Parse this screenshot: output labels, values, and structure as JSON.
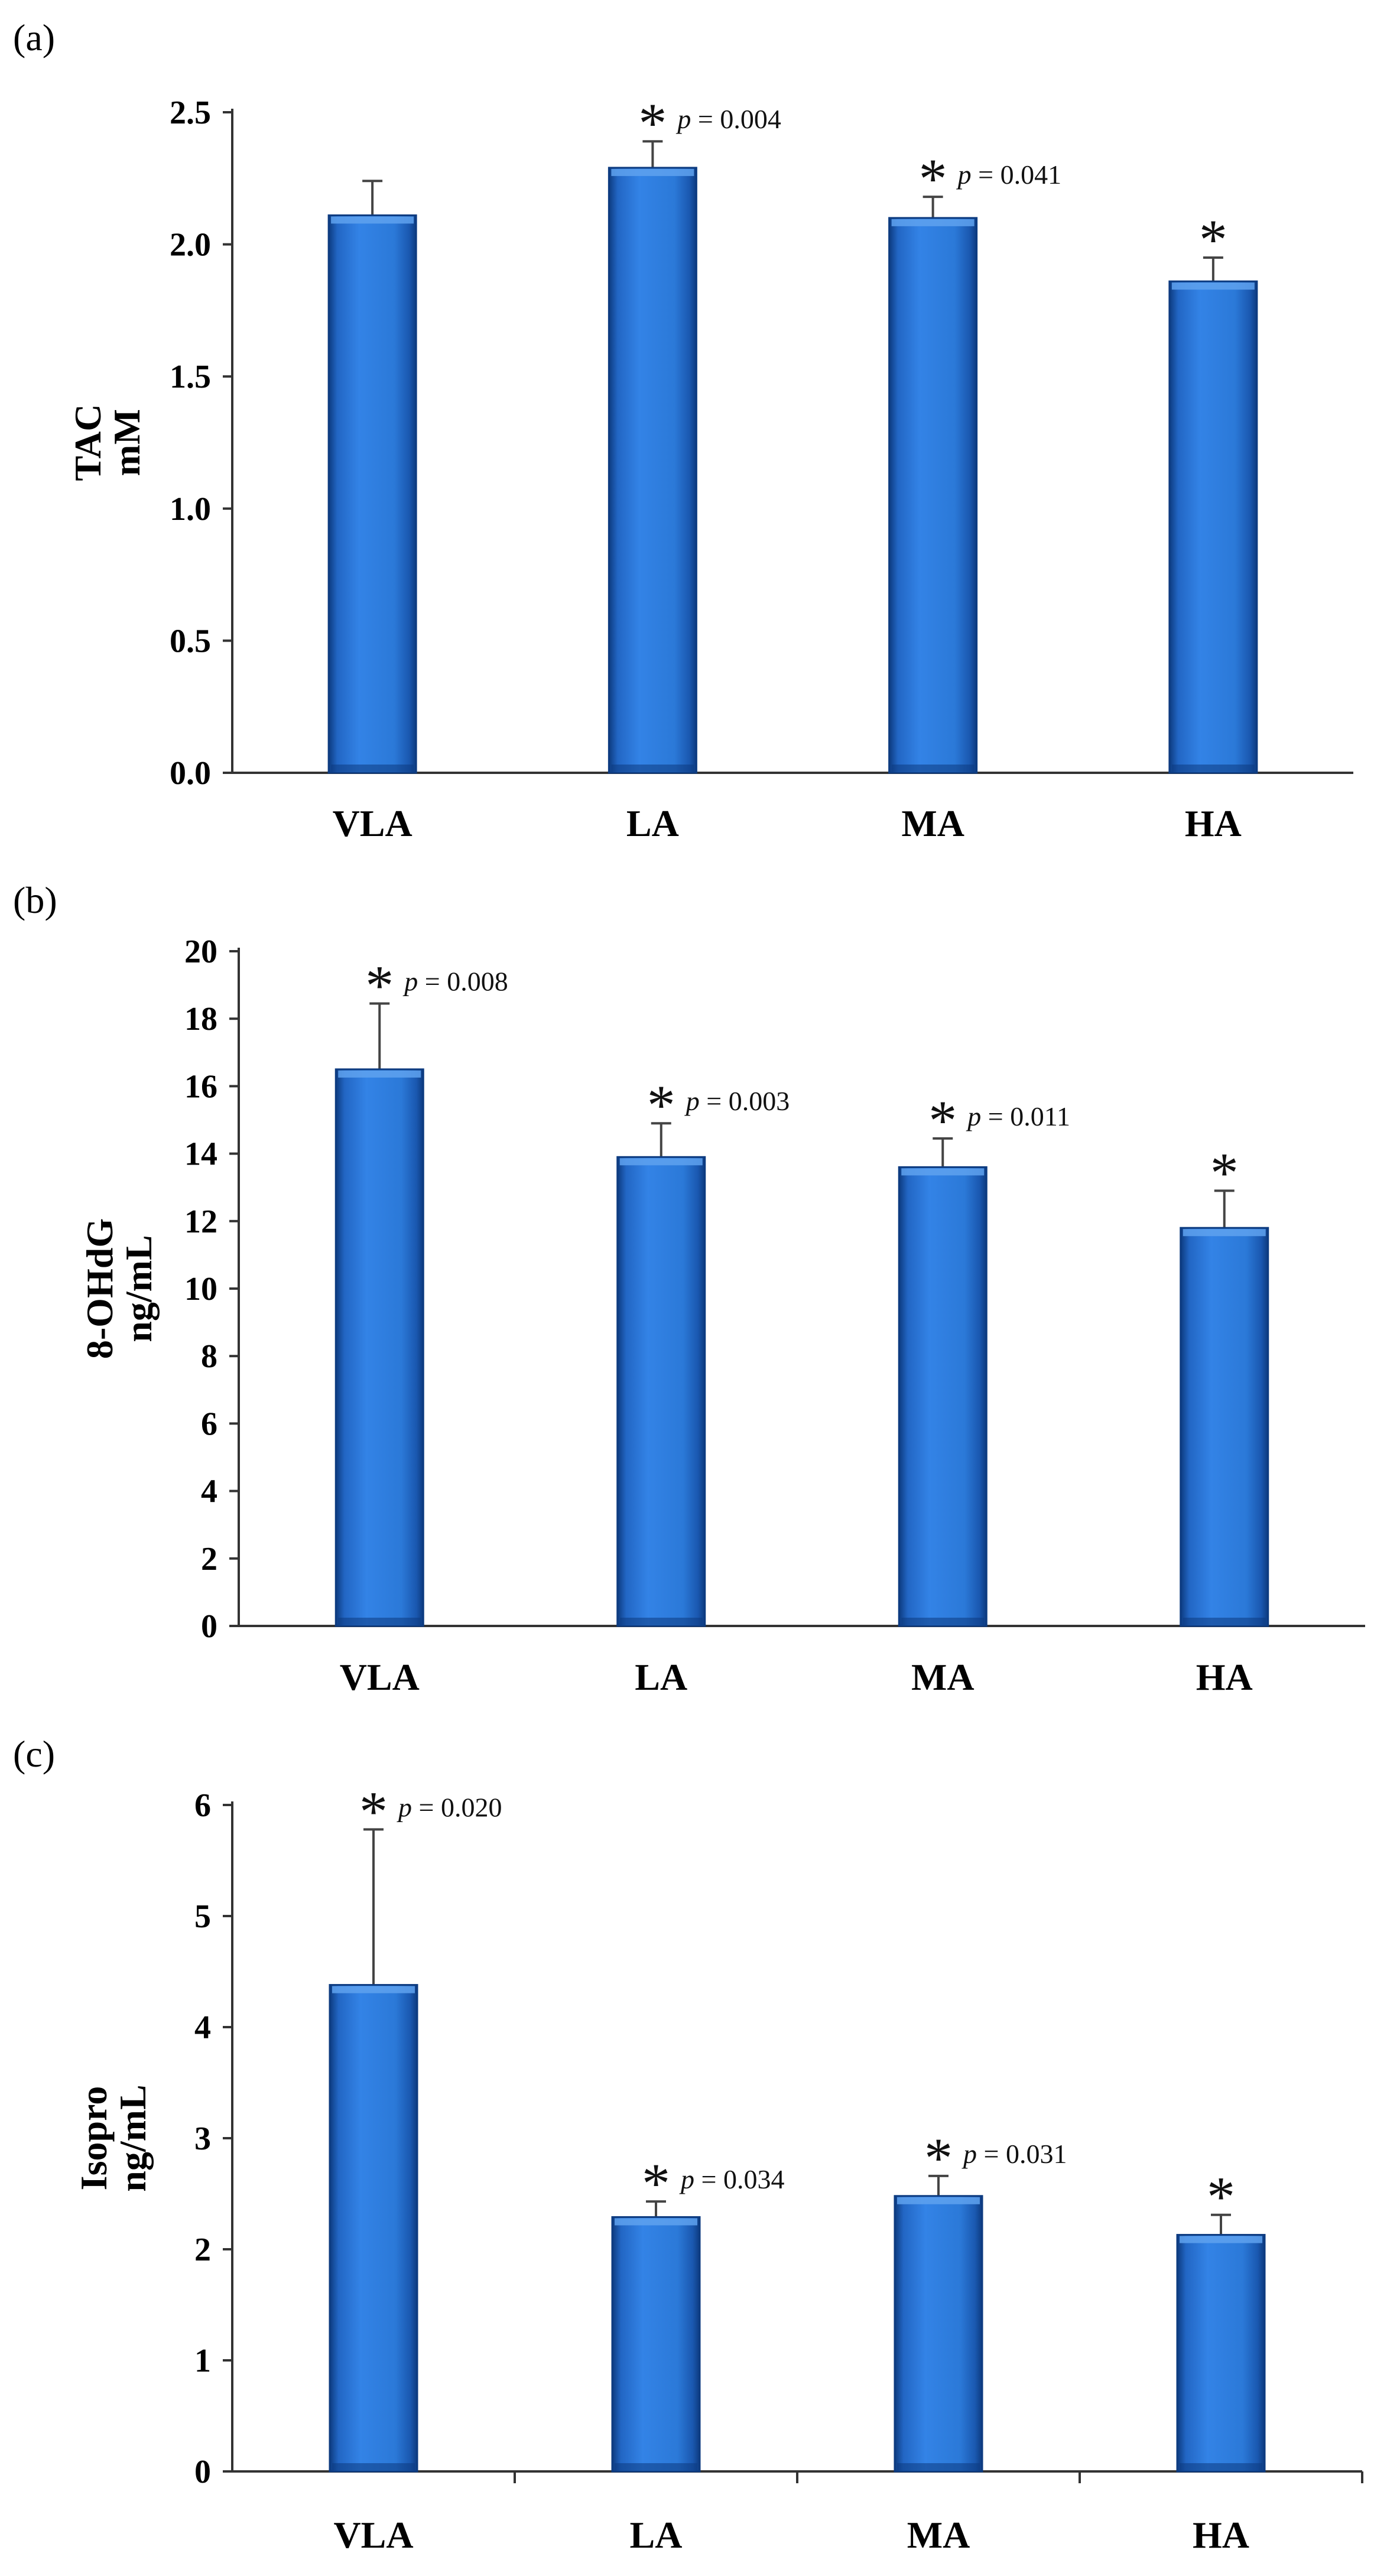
{
  "colors": {
    "bar_main": "#2b79d8",
    "bar_dark": "#0d3b80",
    "bar_light": "#5fa2ee",
    "axis": "#333333"
  },
  "chart_data": [
    {
      "type": "bar",
      "panel_label": "(a)",
      "ylabel_lines": [
        "TAC",
        "mM"
      ],
      "categories": [
        "VLA",
        "LA",
        "MA",
        "HA"
      ],
      "values": [
        2.11,
        2.29,
        2.1,
        1.86
      ],
      "errors": [
        0.13,
        0.1,
        0.08,
        0.09
      ],
      "ylim": [
        0,
        2.5
      ],
      "yticks": [
        0,
        0.5,
        1.0,
        1.5,
        2.0,
        2.5
      ],
      "ytick_labels": [
        "0.0",
        "0.5",
        "1.0",
        "1.5",
        "2.0",
        "2.5"
      ],
      "annotations": [
        {
          "star": "",
          "p_label": "",
          "p_value": ""
        },
        {
          "star": "*",
          "p_label": "p",
          "p_value": " = 0.004"
        },
        {
          "star": "*",
          "p_label": "p",
          "p_value": " = 0.041"
        },
        {
          "star": "*",
          "p_label": "",
          "p_value": ""
        }
      ],
      "category_dividers": false,
      "grid": false
    },
    {
      "type": "bar",
      "panel_label": "(b)",
      "ylabel_lines": [
        "8-OHdG",
        "ng/mL"
      ],
      "categories": [
        "VLA",
        "LA",
        "MA",
        "HA"
      ],
      "values": [
        16.5,
        13.9,
        13.6,
        11.8
      ],
      "errors": [
        1.95,
        1.0,
        0.85,
        1.1
      ],
      "ylim": [
        0,
        20
      ],
      "yticks": [
        0,
        2,
        4,
        6,
        8,
        10,
        12,
        14,
        16,
        18,
        20
      ],
      "ytick_labels": [
        "0",
        "2",
        "4",
        "6",
        "8",
        "10",
        "12",
        "14",
        "16",
        "18",
        "20"
      ],
      "annotations": [
        {
          "star": "*",
          "p_label": "p",
          "p_value": " = 0.008"
        },
        {
          "star": "*",
          "p_label": "p",
          "p_value": " = 0.003"
        },
        {
          "star": "*",
          "p_label": "p",
          "p_value": " = 0.011"
        },
        {
          "star": "*",
          "p_label": "",
          "p_value": ""
        }
      ],
      "category_dividers": false,
      "grid": false
    },
    {
      "type": "bar",
      "panel_label": "(c)",
      "ylabel_lines": [
        "Isopro",
        "ng/mL"
      ],
      "categories": [
        "VLA",
        "LA",
        "MA",
        "HA"
      ],
      "values": [
        4.38,
        2.29,
        2.48,
        2.13
      ],
      "errors": [
        1.4,
        0.14,
        0.18,
        0.18
      ],
      "ylim": [
        0,
        6
      ],
      "yticks": [
        0,
        1,
        2,
        3,
        4,
        5,
        6
      ],
      "ytick_labels": [
        "0",
        "1",
        "2",
        "3",
        "4",
        "5",
        "6"
      ],
      "annotations": [
        {
          "star": "*",
          "p_label": "p",
          "p_value": " = 0.020"
        },
        {
          "star": "*",
          "p_label": "p",
          "p_value": " = 0.034"
        },
        {
          "star": "*",
          "p_label": "p",
          "p_value": " = 0.031"
        },
        {
          "star": "*",
          "p_label": "",
          "p_value": ""
        }
      ],
      "category_dividers": true,
      "grid": false
    }
  ]
}
